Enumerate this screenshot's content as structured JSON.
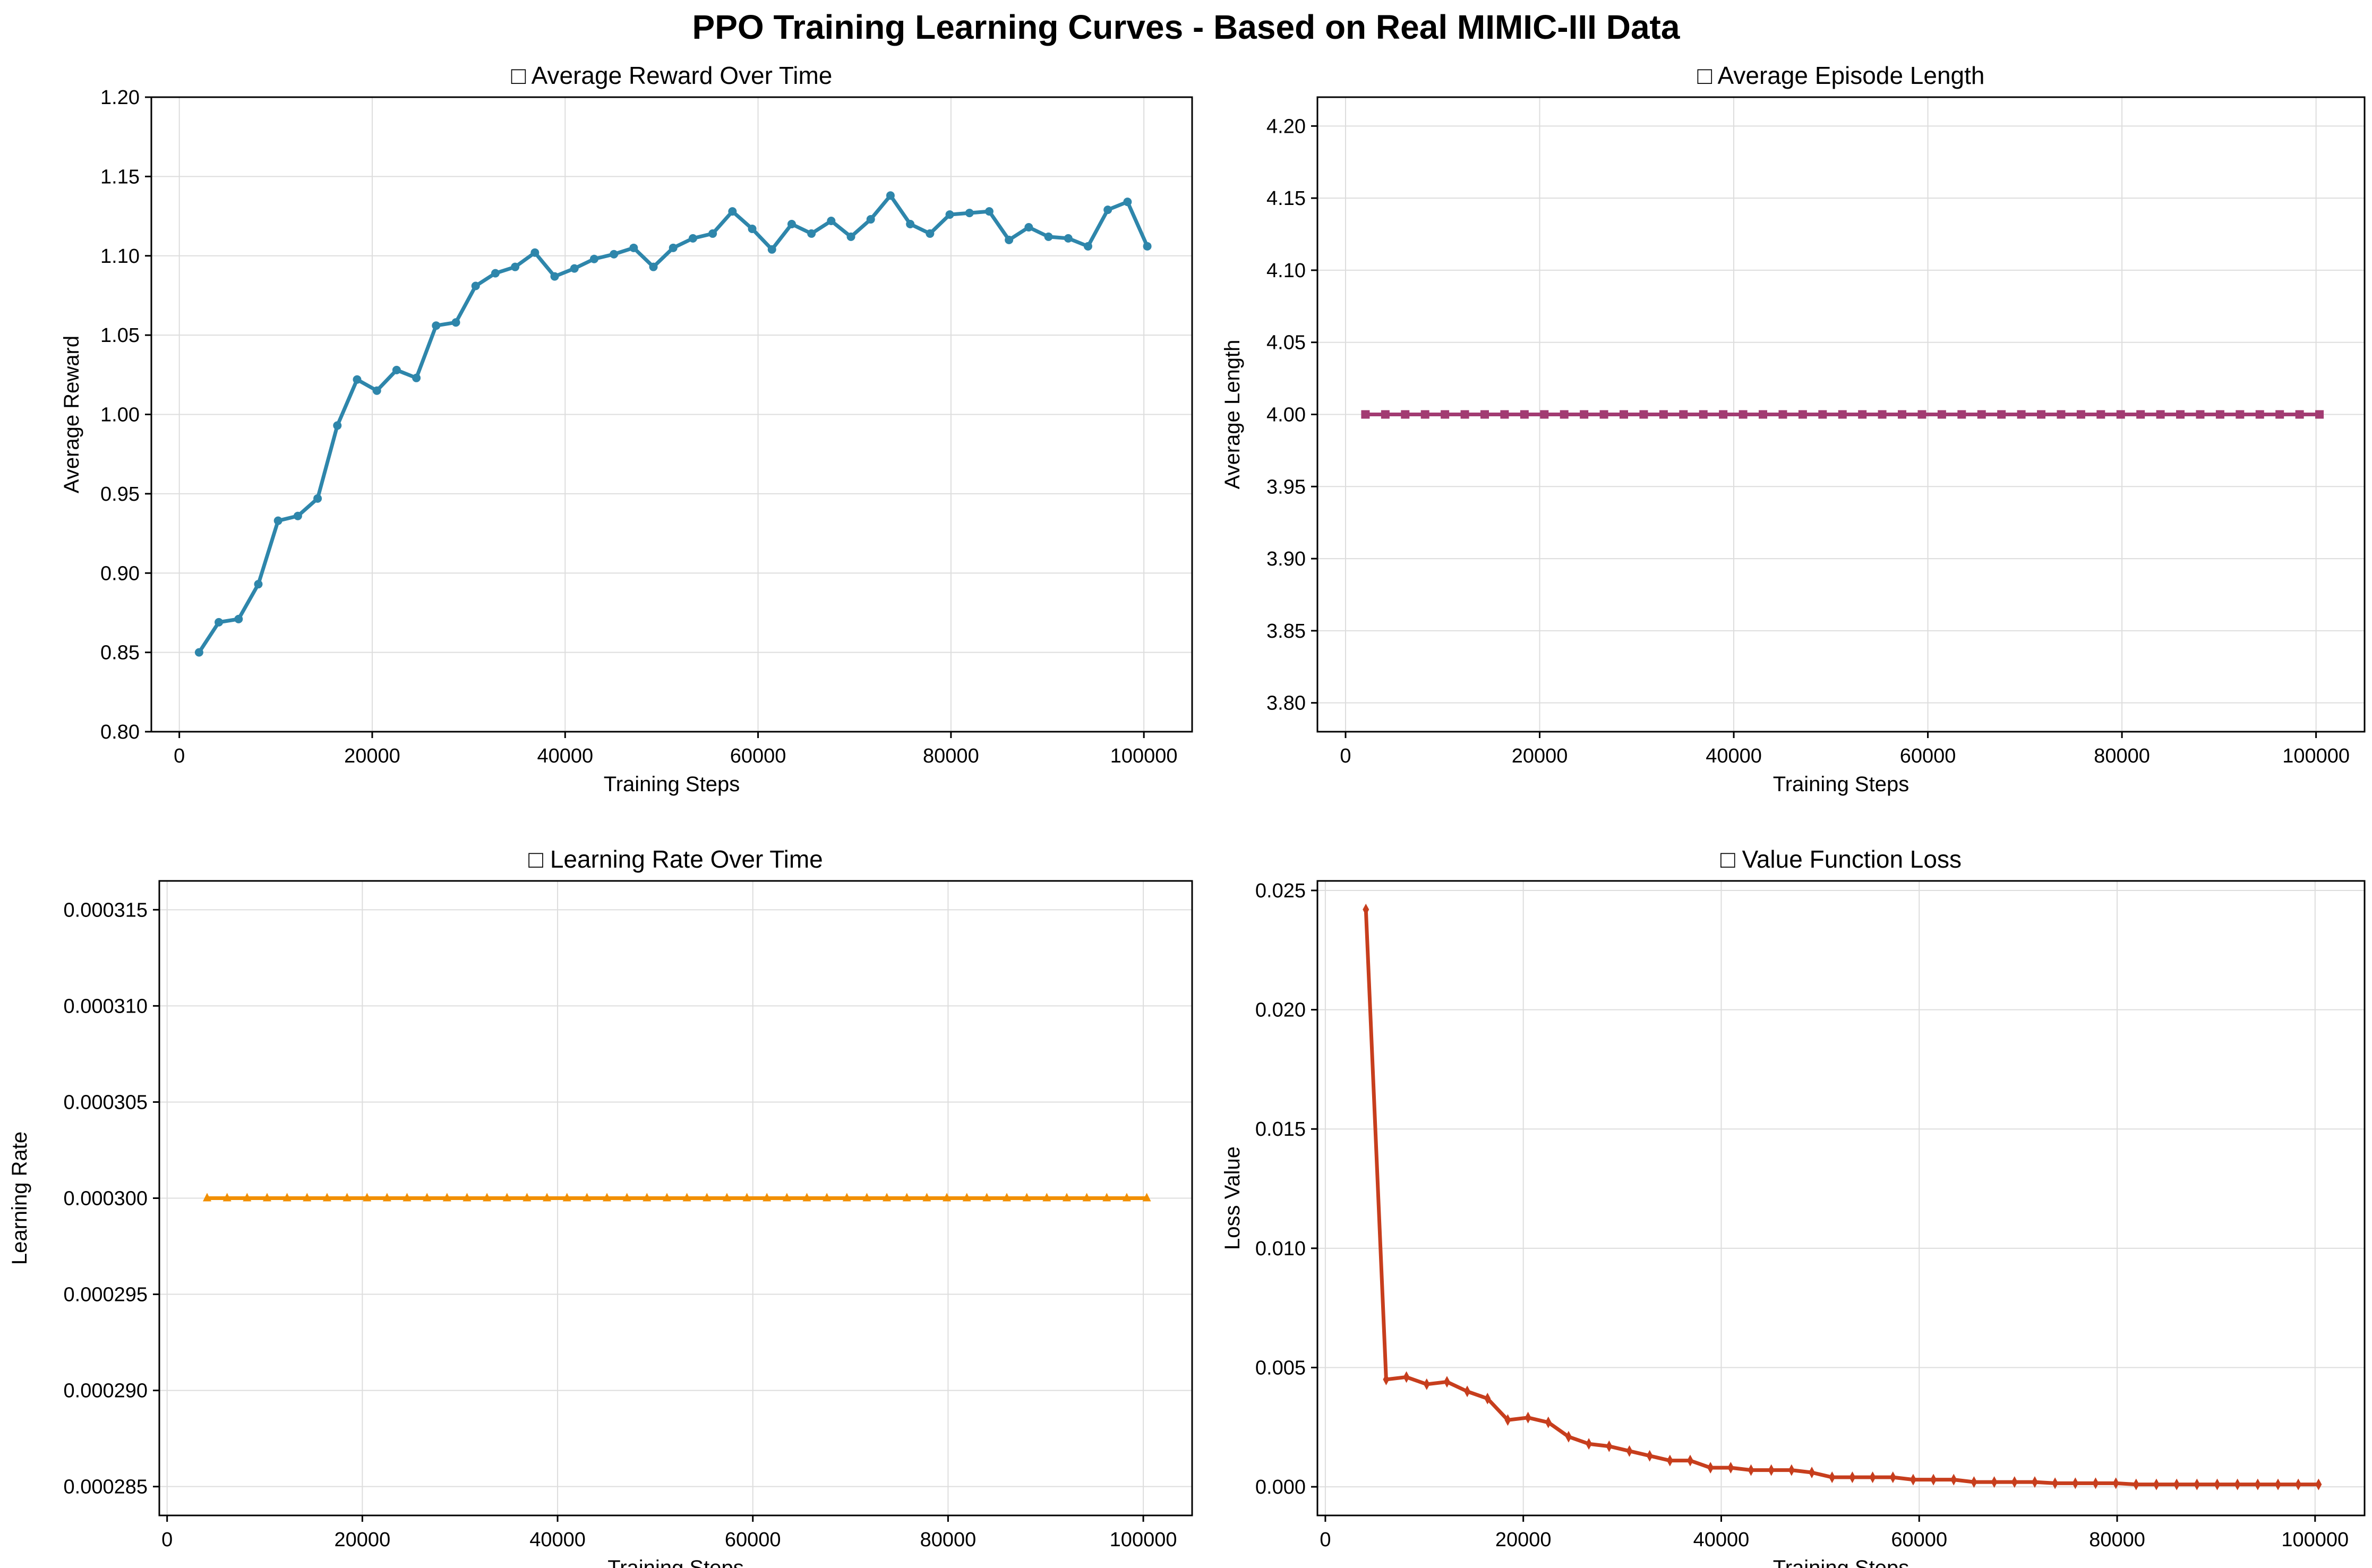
{
  "figure": {
    "title": "PPO Training Learning Curves - Based on Real MIMIC-III Data"
  },
  "colors": {
    "reward": "#2e86ab",
    "length": "#a23b72",
    "lr": "#f18f01",
    "loss": "#c73e1d",
    "grid": "#dddddd",
    "axis": "#000000"
  },
  "chart_data": [
    {
      "type": "line",
      "title": "□ Average Reward Over Time",
      "xlabel": "Training Steps",
      "ylabel": "Average Reward",
      "xlim": [
        -2900,
        105000
      ],
      "ylim": [
        0.8,
        1.2
      ],
      "xticks": [
        "0",
        "20000",
        "40000",
        "60000",
        "80000",
        "100000"
      ],
      "yticks": [
        "0.80",
        "0.85",
        "0.90",
        "0.95",
        "1.00",
        "1.05",
        "1.10",
        "1.15",
        "1.20"
      ],
      "grid": true,
      "marker": "circle",
      "color_key": "reward",
      "series": [
        {
          "x": [
            2048,
            4096,
            6144,
            8192,
            10240,
            12288,
            14336,
            16384,
            18432,
            20480,
            22528,
            24576,
            26624,
            28672,
            30720,
            32768,
            34816,
            36864,
            38912,
            40960,
            43008,
            45056,
            47104,
            49152,
            51200,
            53248,
            55296,
            57344,
            59392,
            61440,
            63488,
            65536,
            67584,
            69632,
            71680,
            73728,
            75776,
            77824,
            79872,
            81920,
            83968,
            86016,
            88064,
            90112,
            92160,
            94208,
            96256,
            98304,
            100352
          ],
          "values": [
            0.85,
            0.869,
            0.871,
            0.893,
            0.933,
            0.936,
            0.947,
            0.993,
            1.022,
            1.015,
            1.028,
            1.023,
            1.056,
            1.058,
            1.081,
            1.089,
            1.093,
            1.102,
            1.087,
            1.092,
            1.098,
            1.101,
            1.105,
            1.093,
            1.105,
            1.111,
            1.114,
            1.128,
            1.117,
            1.104,
            1.12,
            1.114,
            1.122,
            1.112,
            1.123,
            1.138,
            1.12,
            1.114,
            1.126,
            1.127,
            1.128,
            1.11,
            1.118,
            1.112,
            1.111,
            1.106,
            1.129,
            1.134,
            1.106
          ]
        }
      ]
    },
    {
      "type": "line",
      "title": "□ Average Episode Length",
      "xlabel": "Training Steps",
      "ylabel": "Average Length",
      "xlim": [
        -2900,
        105000
      ],
      "ylim": [
        3.78,
        4.22
      ],
      "xticks": [
        "0",
        "20000",
        "40000",
        "60000",
        "80000",
        "100000"
      ],
      "yticks": [
        "3.80",
        "3.85",
        "3.90",
        "3.95",
        "4.00",
        "4.05",
        "4.10",
        "4.15",
        "4.20"
      ],
      "grid": true,
      "marker": "square",
      "color_key": "length",
      "series": [
        {
          "x": [
            2048,
            4096,
            6144,
            8192,
            10240,
            12288,
            14336,
            16384,
            18432,
            20480,
            22528,
            24576,
            26624,
            28672,
            30720,
            32768,
            34816,
            36864,
            38912,
            40960,
            43008,
            45056,
            47104,
            49152,
            51200,
            53248,
            55296,
            57344,
            59392,
            61440,
            63488,
            65536,
            67584,
            69632,
            71680,
            73728,
            75776,
            77824,
            79872,
            81920,
            83968,
            86016,
            88064,
            90112,
            92160,
            94208,
            96256,
            98304,
            100352
          ],
          "values": [
            4,
            4,
            4,
            4,
            4,
            4,
            4,
            4,
            4,
            4,
            4,
            4,
            4,
            4,
            4,
            4,
            4,
            4,
            4,
            4,
            4,
            4,
            4,
            4,
            4,
            4,
            4,
            4,
            4,
            4,
            4,
            4,
            4,
            4,
            4,
            4,
            4,
            4,
            4,
            4,
            4,
            4,
            4,
            4,
            4,
            4,
            4,
            4,
            4
          ]
        }
      ]
    },
    {
      "type": "line",
      "title": "□ Learning Rate Over Time",
      "xlabel": "Training Steps",
      "ylabel": "Learning Rate",
      "xlim": [
        -800,
        105000
      ],
      "ylim": [
        0.0002835,
        0.0003165
      ],
      "xticks": [
        "0",
        "20000",
        "40000",
        "60000",
        "80000",
        "100000"
      ],
      "yticks": [
        "0.000285",
        "0.000290",
        "0.000295",
        "0.000300",
        "0.000305",
        "0.000310",
        "0.000315"
      ],
      "grid": true,
      "marker": "triangle",
      "color_key": "lr",
      "series": [
        {
          "x": [
            4096,
            6144,
            8192,
            10240,
            12288,
            14336,
            16384,
            18432,
            20480,
            22528,
            24576,
            26624,
            28672,
            30720,
            32768,
            34816,
            36864,
            38912,
            40960,
            43008,
            45056,
            47104,
            49152,
            51200,
            53248,
            55296,
            57344,
            59392,
            61440,
            63488,
            65536,
            67584,
            69632,
            71680,
            73728,
            75776,
            77824,
            79872,
            81920,
            83968,
            86016,
            88064,
            90112,
            92160,
            94208,
            96256,
            98304,
            100352
          ],
          "values": [
            0.0003,
            0.0003,
            0.0003,
            0.0003,
            0.0003,
            0.0003,
            0.0003,
            0.0003,
            0.0003,
            0.0003,
            0.0003,
            0.0003,
            0.0003,
            0.0003,
            0.0003,
            0.0003,
            0.0003,
            0.0003,
            0.0003,
            0.0003,
            0.0003,
            0.0003,
            0.0003,
            0.0003,
            0.0003,
            0.0003,
            0.0003,
            0.0003,
            0.0003,
            0.0003,
            0.0003,
            0.0003,
            0.0003,
            0.0003,
            0.0003,
            0.0003,
            0.0003,
            0.0003,
            0.0003,
            0.0003,
            0.0003,
            0.0003,
            0.0003,
            0.0003,
            0.0003,
            0.0003,
            0.0003,
            0.0003
          ]
        }
      ]
    },
    {
      "type": "line",
      "title": "□ Value Function Loss",
      "xlabel": "Training Steps",
      "ylabel": "Loss Value",
      "xlim": [
        -800,
        105000
      ],
      "ylim": [
        -0.0012,
        0.0254
      ],
      "xticks": [
        "0",
        "20000",
        "40000",
        "60000",
        "80000",
        "100000"
      ],
      "yticks": [
        "0.000",
        "0.005",
        "0.010",
        "0.015",
        "0.020",
        "0.025"
      ],
      "grid": true,
      "marker": "diamond",
      "color_key": "loss",
      "series": [
        {
          "x": [
            4096,
            6144,
            8192,
            10240,
            12288,
            14336,
            16384,
            18432,
            20480,
            22528,
            24576,
            26624,
            28672,
            30720,
            32768,
            34816,
            36864,
            38912,
            40960,
            43008,
            45056,
            47104,
            49152,
            51200,
            53248,
            55296,
            57344,
            59392,
            61440,
            63488,
            65536,
            67584,
            69632,
            71680,
            73728,
            75776,
            77824,
            79872,
            81920,
            83968,
            86016,
            88064,
            90112,
            92160,
            94208,
            96256,
            98304,
            100352
          ],
          "values": [
            0.0242,
            0.0045,
            0.0046,
            0.0043,
            0.0044,
            0.004,
            0.0037,
            0.0028,
            0.0029,
            0.0027,
            0.0021,
            0.0018,
            0.0017,
            0.0015,
            0.0013,
            0.0011,
            0.0011,
            0.0008,
            0.0008,
            0.0007,
            0.0007,
            0.0007,
            0.0006,
            0.0004,
            0.0004,
            0.0004,
            0.0004,
            0.0003,
            0.0003,
            0.0003,
            0.0002,
            0.0002,
            0.0002,
            0.0002,
            0.00015,
            0.00015,
            0.00015,
            0.00015,
            0.0001,
            0.0001,
            0.0001,
            0.0001,
            0.0001,
            0.0001,
            0.0001,
            0.0001,
            0.0001,
            0.0001
          ]
        }
      ]
    }
  ]
}
